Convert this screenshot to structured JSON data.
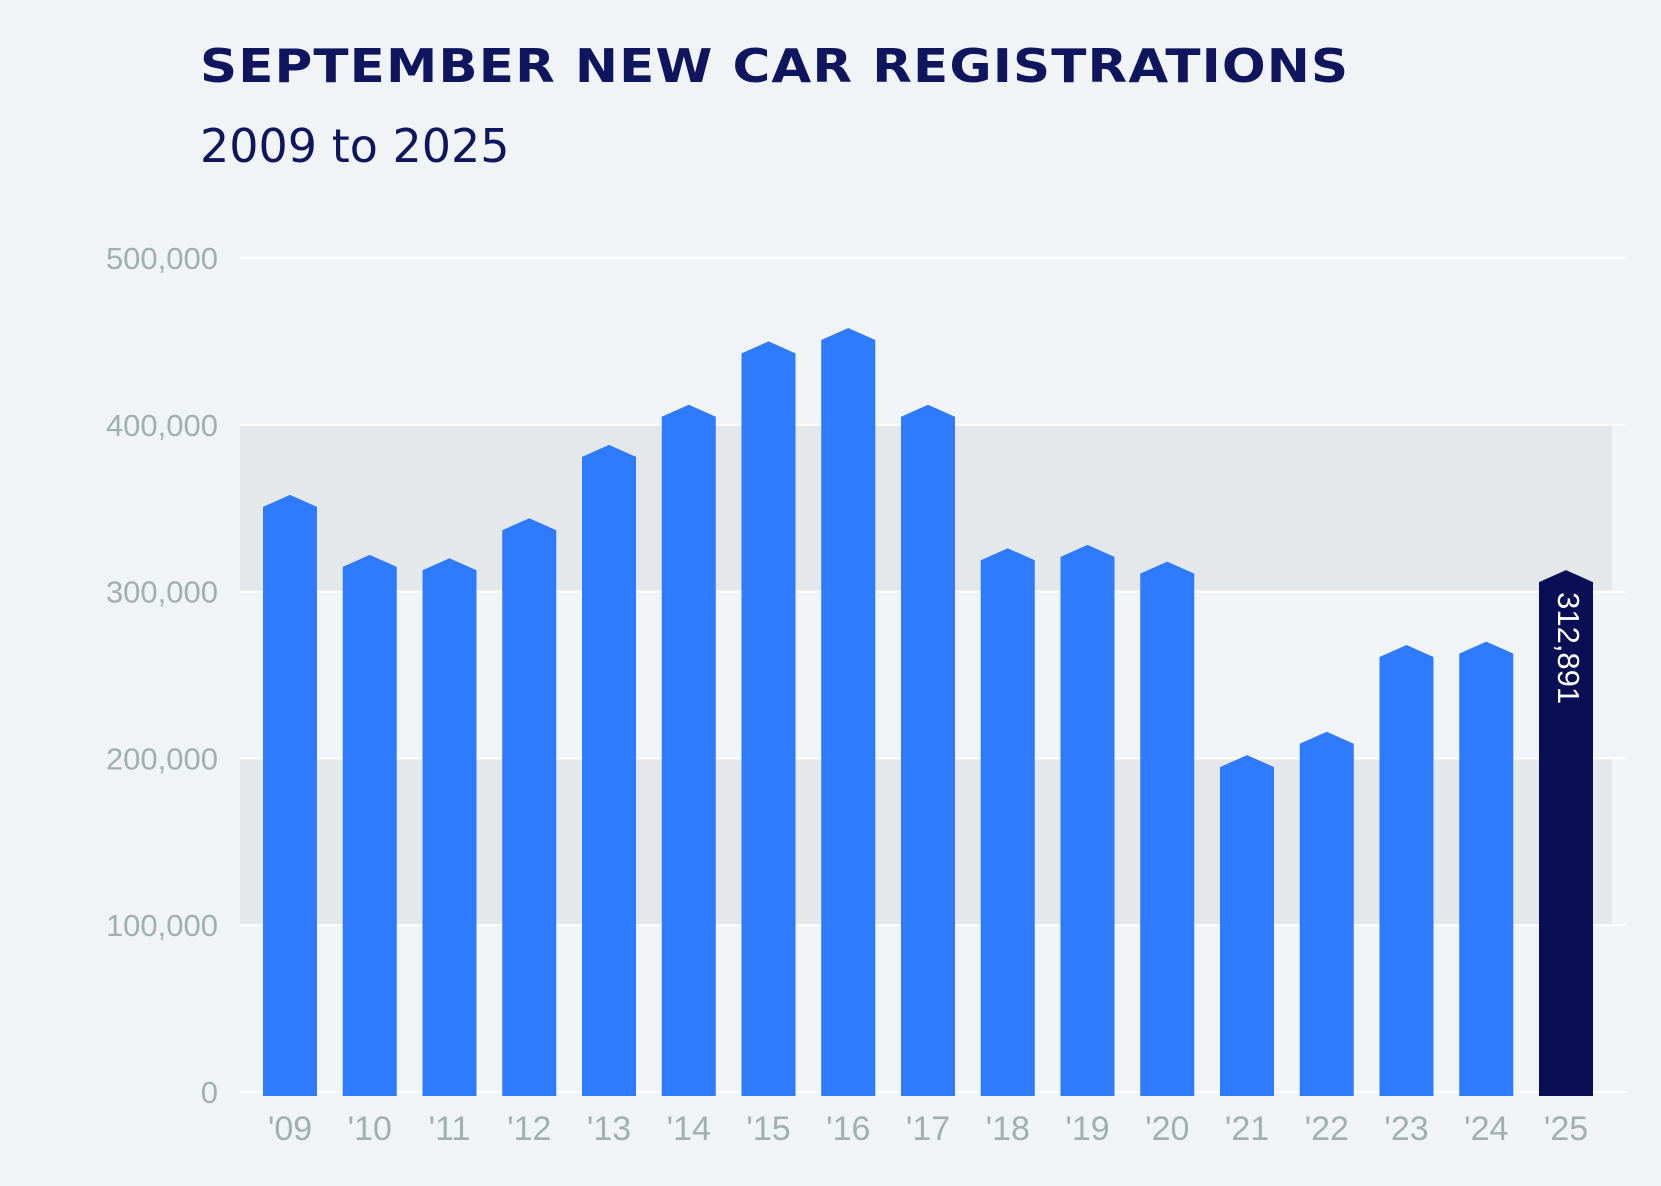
{
  "chart_data": {
    "type": "bar",
    "title": "SEPTEMBER NEW CAR REGISTRATIONS",
    "subtitle": "2009 to 2025",
    "categories": [
      "'09",
      "'10",
      "'11",
      "'12",
      "'13",
      "'14",
      "'15",
      "'16",
      "'17",
      "'18",
      "'19",
      "'20",
      "'21",
      "'22",
      "'23",
      "'24",
      "'25"
    ],
    "values": [
      358000,
      322000,
      320000,
      344000,
      388000,
      412000,
      450000,
      458000,
      412000,
      326000,
      328000,
      318000,
      202000,
      216000,
      268000,
      270000,
      312891
    ],
    "ylim": [
      0,
      500000
    ],
    "yticks": [
      0,
      100000,
      200000,
      300000,
      400000,
      500000
    ],
    "ytick_labels": [
      "0",
      "100,000",
      "200,000",
      "300,000",
      "400,000",
      "500,000"
    ],
    "highlight": {
      "category": "'25",
      "label": "312,891",
      "color": "#0a0f55"
    },
    "colors": {
      "bar": "#2f7bff",
      "highlight_bar": "#0a0f55",
      "band": "#e4e8ea",
      "background": "#f1f4f6",
      "title": "#10165e",
      "tick": "#9fb0ad",
      "gridline": "#ffffff"
    },
    "shaded_bands": [
      [
        100000,
        200000
      ],
      [
        300000,
        400000
      ]
    ],
    "grid": true,
    "legend": "none"
  }
}
